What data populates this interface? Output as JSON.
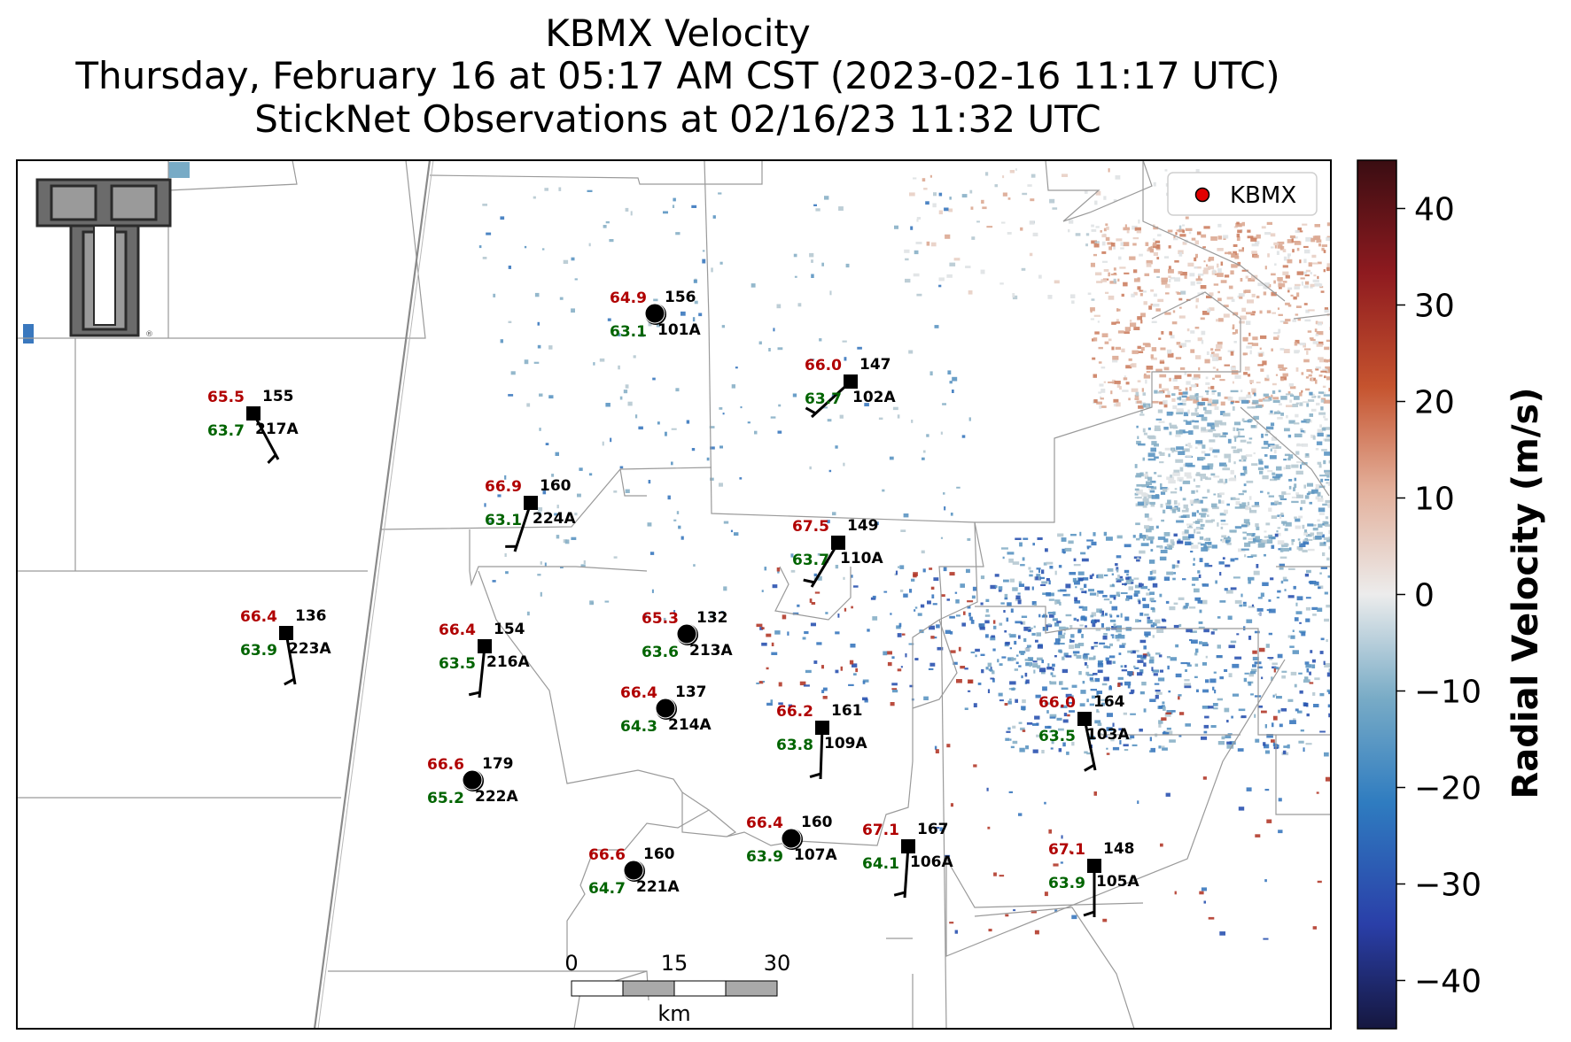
{
  "title": {
    "line1": "KBMX Velocity",
    "line2": "Thursday, February 16 at 05:17 AM CST (2023-02-16 11:17 UTC)",
    "line3": "StickNet Observations at 02/16/23 11:32 UTC"
  },
  "legend": {
    "label": "KBMX",
    "marker_color": "#e00000"
  },
  "colorbar": {
    "label": "Radial Velocity (m/s)",
    "ticks": [
      "40",
      "30",
      "20",
      "10",
      "0",
      "−10",
      "−20",
      "−30",
      "−40"
    ],
    "range": [
      -45,
      45
    ]
  },
  "scalebar": {
    "ticks": [
      "0",
      "15",
      "30"
    ],
    "unit": "km"
  },
  "logo": {
    "icon": "texas-tech-double-t-logo"
  },
  "colors": {
    "temperature": "#b00000",
    "dewpoint": "#006400",
    "text": "#000000"
  },
  "stations": [
    {
      "id": "101A",
      "t": "64.9",
      "td": "63.1",
      "p": "156",
      "marker": "circle"
    },
    {
      "id": "102A",
      "t": "66.0",
      "td": "63.7",
      "p": "147",
      "marker": "square"
    },
    {
      "id": "217A",
      "t": "65.5",
      "td": "63.7",
      "p": "155",
      "marker": "square"
    },
    {
      "id": "224A",
      "t": "66.9",
      "td": "63.1",
      "p": "160",
      "marker": "square"
    },
    {
      "id": "110A",
      "t": "67.5",
      "td": "63.7",
      "p": "149",
      "marker": "square"
    },
    {
      "id": "223A",
      "t": "66.4",
      "td": "63.9",
      "p": "136",
      "marker": "square"
    },
    {
      "id": "216A",
      "t": "66.4",
      "td": "63.5",
      "p": "154",
      "marker": "square"
    },
    {
      "id": "213A",
      "t": "65.3",
      "td": "63.6",
      "p": "132",
      "marker": "circle"
    },
    {
      "id": "214A",
      "t": "66.4",
      "td": "64.3",
      "p": "137",
      "marker": "circle"
    },
    {
      "id": "109A",
      "t": "66.2",
      "td": "63.8",
      "p": "161",
      "marker": "square"
    },
    {
      "id": "103A",
      "t": "66.0",
      "td": "63.5",
      "p": "164",
      "marker": "square"
    },
    {
      "id": "222A",
      "t": "66.6",
      "td": "65.2",
      "p": "179",
      "marker": "circle"
    },
    {
      "id": "107A",
      "t": "66.4",
      "td": "63.9",
      "p": "160",
      "marker": "circle"
    },
    {
      "id": "106A",
      "t": "67.1",
      "td": "64.1",
      "p": "167",
      "marker": "square"
    },
    {
      "id": "105A",
      "t": "67.1",
      "td": "63.9",
      "p": "148",
      "marker": "square"
    },
    {
      "id": "221A",
      "t": "66.6",
      "td": "64.7",
      "p": "160",
      "marker": "circle"
    }
  ]
}
